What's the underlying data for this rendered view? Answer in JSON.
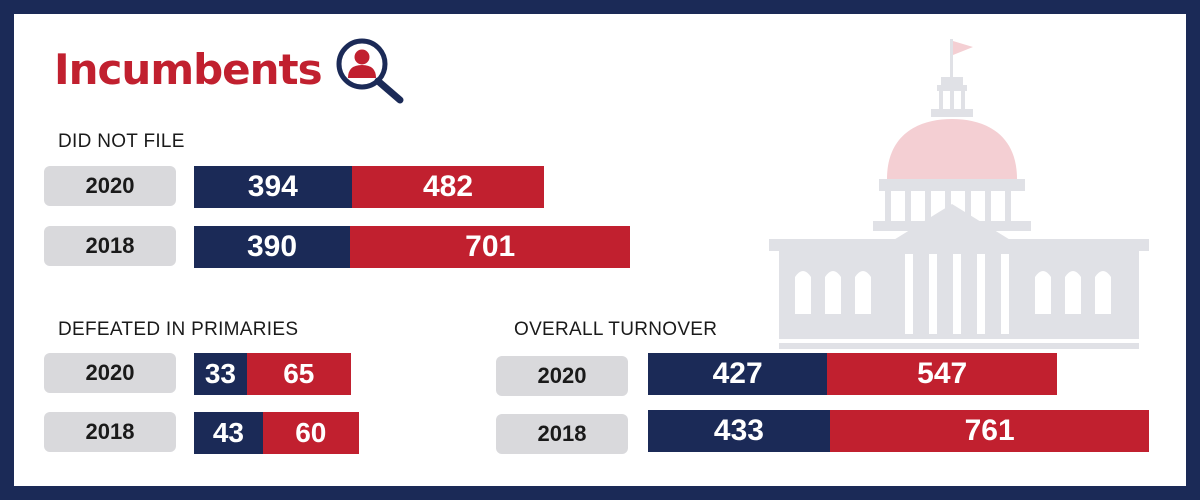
{
  "title": "Incumbents",
  "icons": {
    "title_icon": "magnifier-person-icon",
    "background_icon": "capitol-building-icon"
  },
  "colors": {
    "navy": "#1b2a57",
    "red": "#c1202f",
    "pill": "#d9d9dc",
    "title": "#c1202f"
  },
  "chart_data": [
    {
      "type": "bar",
      "title": "DID NOT FILE",
      "orientation": "horizontal",
      "stacked": true,
      "categories": [
        "2020",
        "2018"
      ],
      "series": [
        {
          "values": [
            394,
            390
          ],
          "color": "#1b2a57"
        },
        {
          "values": [
            482,
            701
          ],
          "color": "#c1202f"
        }
      ]
    },
    {
      "type": "bar",
      "title": "DEFEATED IN PRIMARIES",
      "orientation": "horizontal",
      "stacked": true,
      "categories": [
        "2020",
        "2018"
      ],
      "series": [
        {
          "values": [
            33,
            43
          ],
          "color": "#1b2a57"
        },
        {
          "values": [
            65,
            60
          ],
          "color": "#c1202f"
        }
      ]
    },
    {
      "type": "bar",
      "title": "OVERALL TURNOVER",
      "orientation": "horizontal",
      "stacked": true,
      "categories": [
        "2020",
        "2018"
      ],
      "series": [
        {
          "values": [
            427,
            433
          ],
          "color": "#1b2a57"
        },
        {
          "values": [
            547,
            761
          ],
          "color": "#c1202f"
        }
      ]
    }
  ]
}
